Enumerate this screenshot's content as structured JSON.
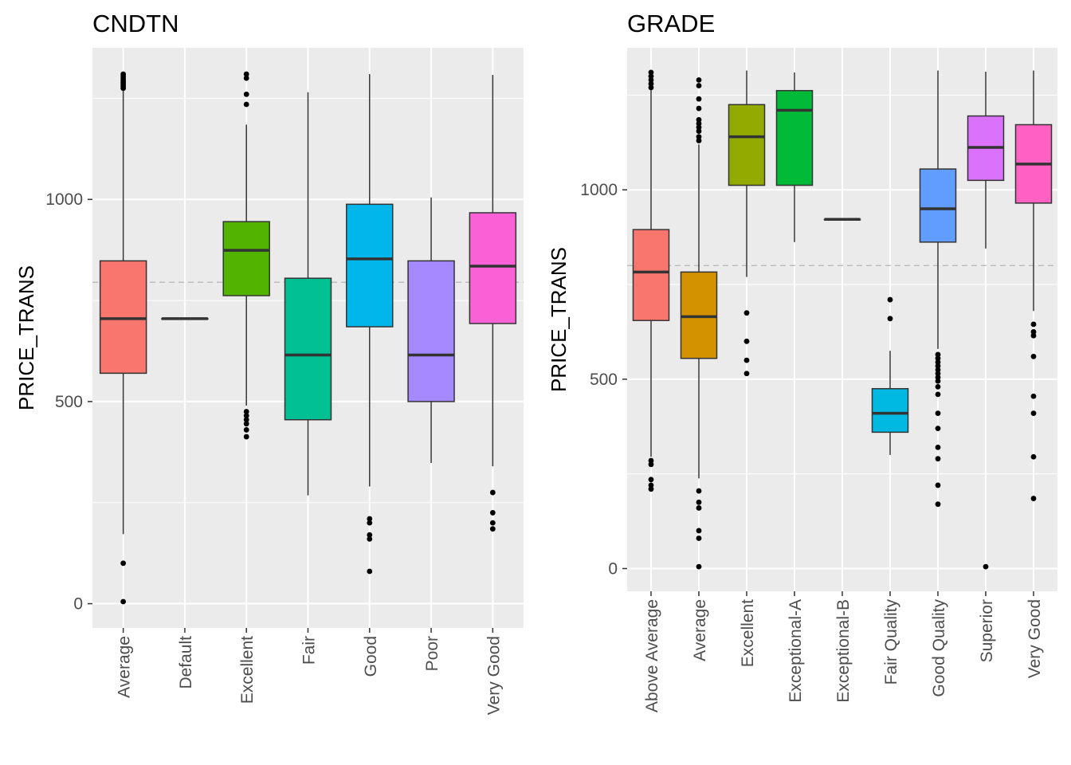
{
  "chart_data": [
    {
      "type": "box",
      "title": "CNDTN",
      "xlabel": "",
      "ylabel": "PRICE_TRANS",
      "ylim": [
        -60,
        1375
      ],
      "yticks": [
        0,
        500,
        1000
      ],
      "grid": true,
      "reference_line": 795,
      "categories": [
        "Average",
        "Default",
        "Excellent",
        "Fair",
        "Good",
        "Poor",
        "Very Good"
      ],
      "colors": [
        "#F8766D",
        "#C49A00",
        "#53B400",
        "#00C094",
        "#00B6EB",
        "#A58AFF",
        "#FB61D7"
      ],
      "boxes": [
        {
          "category": "Average",
          "q1": 570,
          "median": 705,
          "q3": 848,
          "whisker_low": 172,
          "whisker_high": 1302,
          "outliers": [
            100,
            5,
            1275,
            1280,
            1285,
            1290,
            1295,
            1300,
            1305,
            1310
          ]
        },
        {
          "category": "Default",
          "q1": 705,
          "median": 705,
          "q3": 705,
          "whisker_low": 705,
          "whisker_high": 705,
          "outliers": []
        },
        {
          "category": "Excellent",
          "q1": 762,
          "median": 874,
          "q3": 945,
          "whisker_low": 490,
          "whisker_high": 1185,
          "outliers": [
            413,
            430,
            445,
            455,
            465,
            475,
            1235,
            1260,
            1300,
            1310
          ]
        },
        {
          "category": "Fair",
          "q1": 455,
          "median": 615,
          "q3": 805,
          "whisker_low": 268,
          "whisker_high": 1265,
          "outliers": []
        },
        {
          "category": "Good",
          "q1": 685,
          "median": 853,
          "q3": 988,
          "whisker_low": 290,
          "whisker_high": 1310,
          "outliers": [
            80,
            160,
            170,
            200,
            210
          ]
        },
        {
          "category": "Poor",
          "q1": 500,
          "median": 615,
          "q3": 848,
          "whisker_low": 348,
          "whisker_high": 1005,
          "outliers": []
        },
        {
          "category": "Very Good",
          "q1": 693,
          "median": 835,
          "q3": 967,
          "whisker_low": 340,
          "whisker_high": 1308,
          "outliers": [
            185,
            200,
            225,
            275
          ]
        }
      ]
    },
    {
      "type": "box",
      "title": "GRADE",
      "xlabel": "",
      "ylabel": "PRICE_TRANS",
      "ylim": [
        -60,
        1375
      ],
      "yticks": [
        0,
        500,
        1000
      ],
      "grid": true,
      "reference_line": 800,
      "categories": [
        "Above Average",
        "Average",
        "Excellent",
        "Exceptional-A",
        "Exceptional-B",
        "Fair Quality",
        "Good Quality",
        "Superior",
        "Very Good"
      ],
      "colors": [
        "#F8766D",
        "#D39200",
        "#93AA00",
        "#00BA38",
        "#00C19F",
        "#00B9E3",
        "#619CFF",
        "#DB72FB",
        "#FF61C3"
      ],
      "boxes": [
        {
          "category": "Above Average",
          "q1": 655,
          "median": 783,
          "q3": 895,
          "whisker_low": 295,
          "whisker_high": 1315,
          "outliers": [
            210,
            220,
            235,
            275,
            285,
            1270,
            1280,
            1290,
            1300,
            1310
          ]
        },
        {
          "category": "Average",
          "q1": 555,
          "median": 665,
          "q3": 783,
          "whisker_low": 238,
          "whisker_high": 1120,
          "outliers": [
            5,
            80,
            100,
            160,
            175,
            205,
            1130,
            1140,
            1155,
            1165,
            1175,
            1185,
            1215,
            1240,
            1275,
            1290
          ]
        },
        {
          "category": "Excellent",
          "q1": 1012,
          "median": 1140,
          "q3": 1225,
          "whisker_low": 770,
          "whisker_high": 1315,
          "outliers": [
            515,
            550,
            600,
            675
          ]
        },
        {
          "category": "Exceptional-A",
          "q1": 1012,
          "median": 1210,
          "q3": 1262,
          "whisker_low": 862,
          "whisker_high": 1310,
          "outliers": []
        },
        {
          "category": "Exceptional-B",
          "q1": 922,
          "median": 922,
          "q3": 922,
          "whisker_low": 922,
          "whisker_high": 922,
          "outliers": []
        },
        {
          "category": "Fair Quality",
          "q1": 360,
          "median": 410,
          "q3": 475,
          "whisker_low": 300,
          "whisker_high": 575,
          "outliers": [
            660,
            710
          ]
        },
        {
          "category": "Good Quality",
          "q1": 862,
          "median": 950,
          "q3": 1055,
          "whisker_low": 580,
          "whisker_high": 1315,
          "outliers": [
            170,
            220,
            290,
            320,
            370,
            410,
            460,
            480,
            495,
            505,
            515,
            525,
            535,
            545,
            555,
            565
          ]
        },
        {
          "category": "Superior",
          "q1": 1025,
          "median": 1112,
          "q3": 1195,
          "whisker_low": 845,
          "whisker_high": 1312,
          "outliers": [
            5
          ]
        },
        {
          "category": "Very Good",
          "q1": 965,
          "median": 1068,
          "q3": 1172,
          "whisker_low": 680,
          "whisker_high": 1315,
          "outliers": [
            185,
            295,
            410,
            455,
            560,
            615,
            625,
            645
          ]
        }
      ]
    }
  ]
}
